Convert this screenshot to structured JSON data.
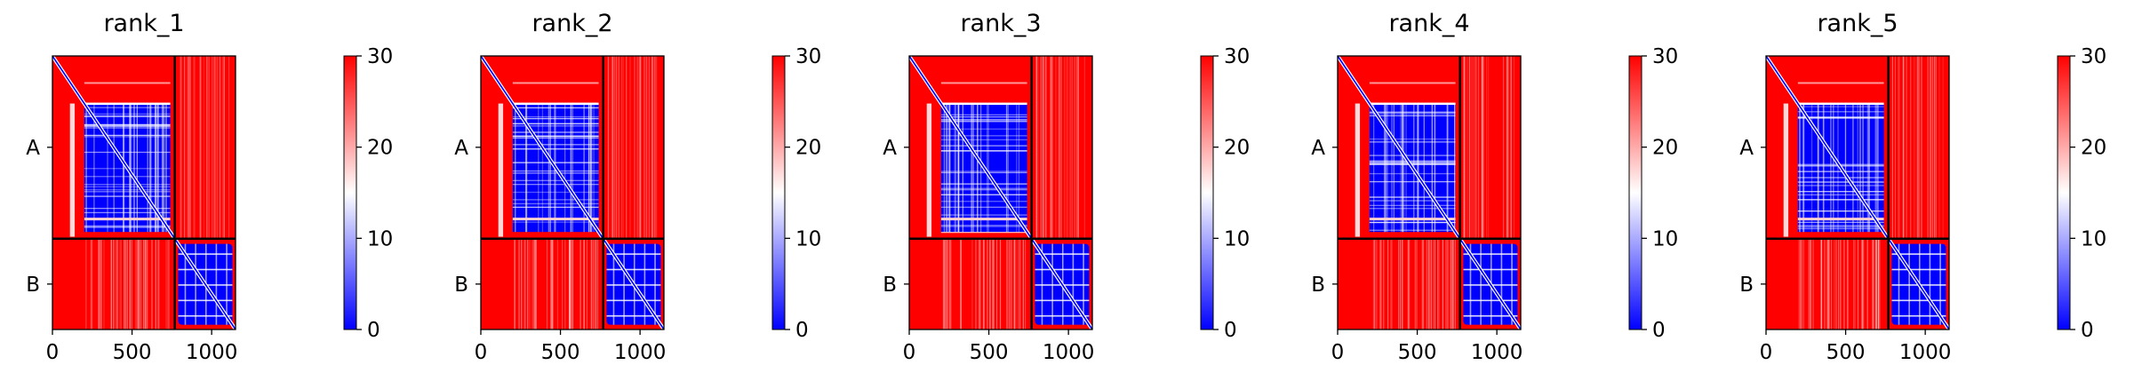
{
  "colors": {
    "low": "#0000ff",
    "mid": "#ffffff",
    "high": "#ff0000",
    "frame": "#000000"
  },
  "chart_data": [
    {
      "type": "heatmap",
      "title": "rank_1",
      "xticks": [
        0,
        500,
        1000
      ],
      "xlim": [
        0,
        1150
      ],
      "yticklabels": [
        "A",
        "B"
      ],
      "chain_boundary": 768,
      "colorbar": {
        "ticks": [
          0,
          10,
          20,
          30
        ],
        "range": [
          0,
          30
        ],
        "colormap": "bwr"
      },
      "grid": false
    },
    {
      "type": "heatmap",
      "title": "rank_2",
      "xticks": [
        0,
        500,
        1000
      ],
      "xlim": [
        0,
        1150
      ],
      "yticklabels": [
        "A",
        "B"
      ],
      "chain_boundary": 768,
      "colorbar": {
        "ticks": [
          0,
          10,
          20,
          30
        ],
        "range": [
          0,
          30
        ],
        "colormap": "bwr"
      },
      "grid": false
    },
    {
      "type": "heatmap",
      "title": "rank_3",
      "xticks": [
        0,
        500,
        1000
      ],
      "xlim": [
        0,
        1150
      ],
      "yticklabels": [
        "A",
        "B"
      ],
      "chain_boundary": 768,
      "colorbar": {
        "ticks": [
          0,
          10,
          20,
          30
        ],
        "range": [
          0,
          30
        ],
        "colormap": "bwr"
      },
      "grid": false
    },
    {
      "type": "heatmap",
      "title": "rank_4",
      "xticks": [
        0,
        500,
        1000
      ],
      "xlim": [
        0,
        1150
      ],
      "yticklabels": [
        "A",
        "B"
      ],
      "chain_boundary": 768,
      "colorbar": {
        "ticks": [
          0,
          10,
          20,
          30
        ],
        "range": [
          0,
          30
        ],
        "colormap": "bwr"
      },
      "grid": false
    },
    {
      "type": "heatmap",
      "title": "rank_5",
      "xticks": [
        0,
        500,
        1000
      ],
      "xlim": [
        0,
        1150
      ],
      "yticklabels": [
        "A",
        "B"
      ],
      "chain_boundary": 768,
      "colorbar": {
        "ticks": [
          0,
          10,
          20,
          30
        ],
        "range": [
          0,
          30
        ],
        "colormap": "bwr"
      },
      "grid": false
    }
  ]
}
